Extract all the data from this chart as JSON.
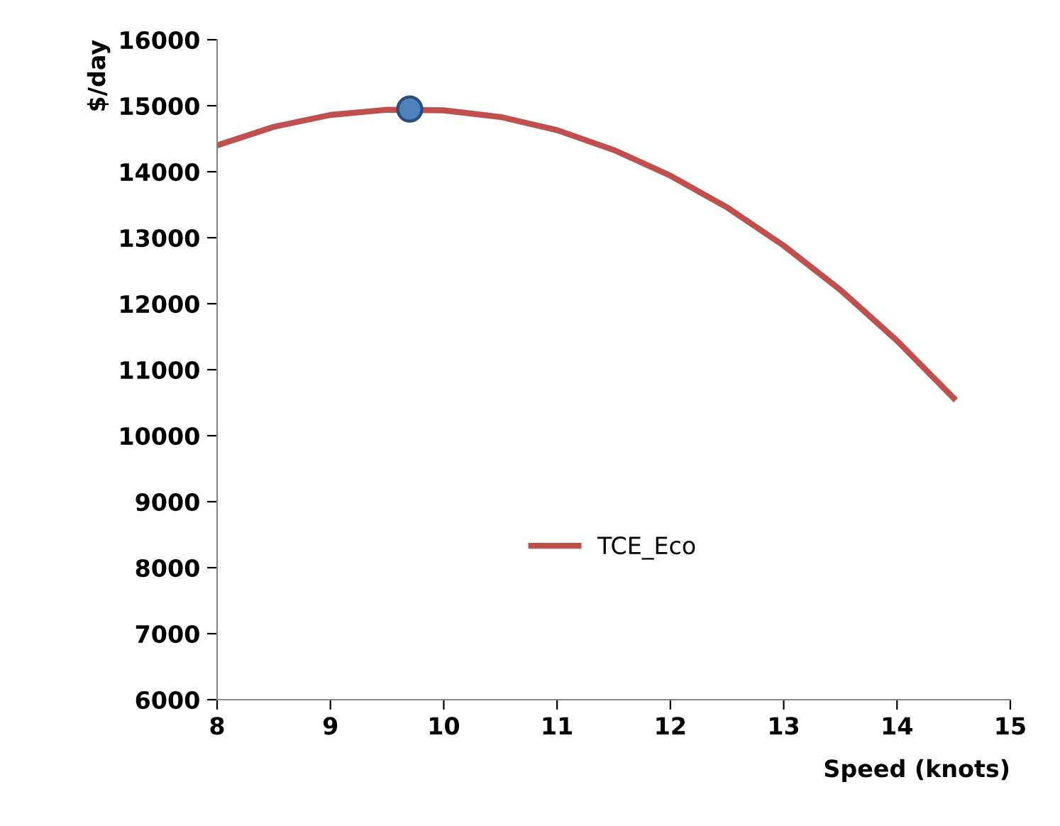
{
  "chart_data": {
    "type": "line",
    "xlabel": "Speed (knots)",
    "ylabel": "$/day",
    "xlim": [
      8,
      15
    ],
    "xticks": [
      8,
      9,
      10,
      11,
      12,
      13,
      14,
      15
    ],
    "ylim": [
      6000,
      16000
    ],
    "yticks": [
      6000,
      7000,
      8000,
      9000,
      10000,
      11000,
      12000,
      13000,
      14000,
      15000,
      16000
    ],
    "grid": false,
    "legend": "bottom",
    "marker": "none",
    "line_style": "solid",
    "series": [
      {
        "name": "TCE_Eco",
        "color": "#c0504d",
        "x": [
          8,
          8.5,
          9,
          9.5,
          10,
          10.5,
          11,
          11.5,
          12,
          12.5,
          13,
          13.5,
          14,
          14.5
        ],
        "values": [
          14400,
          14680,
          14860,
          14940,
          14930,
          14830,
          14630,
          14330,
          13940,
          13460,
          12880,
          12210,
          11440,
          10570
        ]
      },
      {
        "type": "scatter",
        "marker": "circle",
        "color": "#4f81bd",
        "x": [
          9.7
        ],
        "values": [
          14950
        ]
      }
    ]
  }
}
